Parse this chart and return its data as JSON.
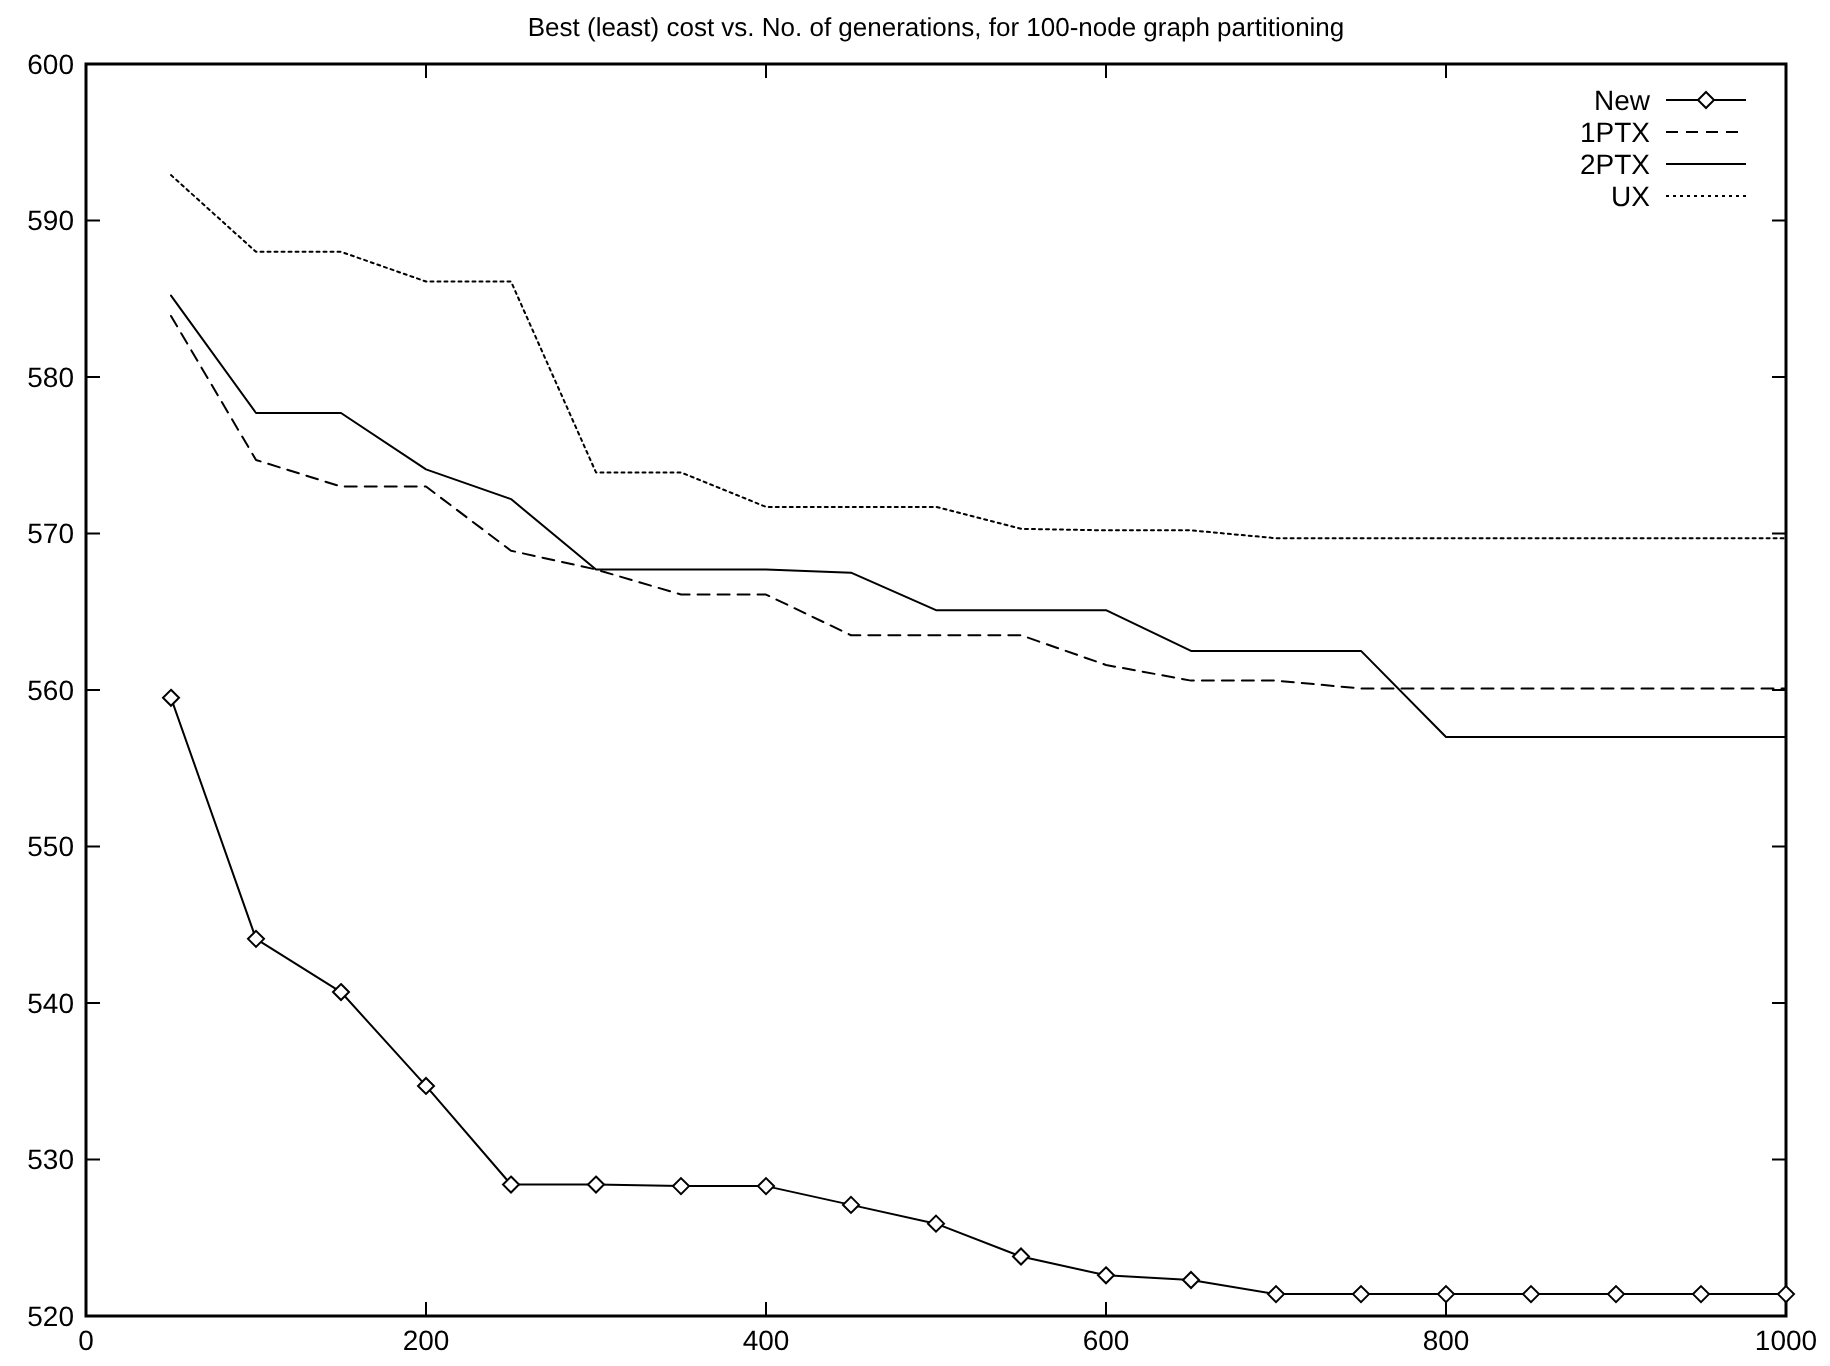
{
  "chart_data": {
    "type": "line",
    "title": "Best (least) cost vs. No. of generations, for 100-node graph partitioning",
    "x": [
      50,
      100,
      150,
      200,
      250,
      300,
      350,
      400,
      450,
      500,
      550,
      600,
      650,
      700,
      750,
      800,
      850,
      900,
      950,
      1000
    ],
    "xlim": [
      0,
      1000
    ],
    "xticks": [
      0,
      200,
      400,
      600,
      800,
      1000
    ],
    "ylim": [
      520,
      600
    ],
    "yticks": [
      520,
      530,
      540,
      550,
      560,
      570,
      580,
      590,
      600
    ],
    "grid": false,
    "legend": "top right",
    "series": [
      {
        "name": "New",
        "color": "#000000",
        "marker": "diamond",
        "line_style": "solid",
        "values": [
          559.5,
          544.1,
          540.7,
          534.7,
          528.4,
          528.4,
          528.3,
          528.3,
          527.1,
          525.9,
          523.8,
          522.6,
          522.3,
          521.4,
          521.4,
          521.4,
          521.4,
          521.4,
          521.4,
          521.4
        ]
      },
      {
        "name": "1PTX",
        "color": "#000000",
        "marker": "none",
        "line_style": "dashed",
        "values": [
          583.9,
          574.7,
          573.0,
          573.0,
          568.9,
          567.7,
          566.1,
          566.1,
          563.5,
          563.5,
          563.5,
          561.6,
          560.6,
          560.6,
          560.1,
          560.1,
          560.1,
          560.1,
          560.1,
          560.1
        ]
      },
      {
        "name": "2PTX",
        "color": "#000000",
        "marker": "none",
        "line_style": "solid",
        "values": [
          585.2,
          577.7,
          577.7,
          574.1,
          572.2,
          567.7,
          567.7,
          567.7,
          567.5,
          565.1,
          565.1,
          565.1,
          562.5,
          562.5,
          562.5,
          557.0,
          557.0,
          557.0,
          557.0,
          557.0
        ]
      },
      {
        "name": "UX",
        "color": "#000000",
        "marker": "none",
        "line_style": "dotted",
        "values": [
          592.9,
          588.0,
          588.0,
          586.1,
          586.1,
          573.9,
          573.9,
          571.7,
          571.7,
          571.7,
          570.3,
          570.2,
          570.2,
          569.7,
          569.7,
          569.7,
          569.7,
          569.7,
          569.7,
          569.7
        ]
      }
    ]
  }
}
